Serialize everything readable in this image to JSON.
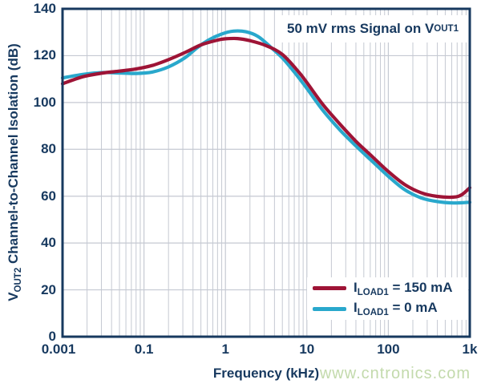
{
  "colors": {
    "axis_and_text": "#17395f",
    "grid": "#c5c9d2",
    "background": "#ffffff",
    "series_red": "#9e1436",
    "series_cyan": "#29a8cc",
    "watermark_green": "#c3daac"
  },
  "annotation": {
    "prefix": "50 mV rms Signal on V",
    "sub": "OUT1"
  },
  "axes": {
    "y_title": {
      "prefix": "V",
      "sub": "OUT2",
      "rest": " Channel-to-Channel Isolation (dB)"
    },
    "x_title": "Frequency (kHz)",
    "y_tick_labels": [
      "0",
      "20",
      "40",
      "60",
      "80",
      "100",
      "120",
      "140"
    ],
    "x_tick_labels": [
      "0.001",
      "0.1",
      "1",
      "10",
      "100",
      "1k"
    ]
  },
  "watermark": {
    "text": "www.cntronics.com"
  },
  "chart_data": {
    "type": "line",
    "title": "",
    "annotation": "50 mV rms Signal on VOUT1",
    "xlabel": "Frequency (kHz)",
    "ylabel": "VOUT2 Channel-to-Channel Isolation (dB)",
    "x_axis": {
      "scale": "log",
      "decades": 5,
      "tick_labels": [
        "0.001",
        "0.1",
        "1",
        "10",
        "100",
        "1k"
      ],
      "grid": true
    },
    "y_axis": {
      "min": 0,
      "max": 140,
      "step": 20,
      "grid": true
    },
    "legend_position": "lower right",
    "series": [
      {
        "name": "ILOAD1 = 150 mA",
        "legend": {
          "prefix": "I",
          "sub": "LOAD1",
          "rest": " = 150 mA"
        },
        "color": "#9e1436",
        "points_decade_dB": [
          [
            0,
            108
          ],
          [
            0.25,
            111
          ],
          [
            0.5,
            112.6
          ],
          [
            0.7,
            113.4
          ],
          [
            0.9,
            114.3
          ],
          [
            1.1,
            115.8
          ],
          [
            1.3,
            118.3
          ],
          [
            1.5,
            121.3
          ],
          [
            1.7,
            124.6
          ],
          [
            1.9,
            126.6
          ],
          [
            2.0,
            127.2
          ],
          [
            2.15,
            127.3
          ],
          [
            2.3,
            126.4
          ],
          [
            2.5,
            124.3
          ],
          [
            2.7,
            120.5
          ],
          [
            2.9,
            113
          ],
          [
            3.0,
            108.5
          ],
          [
            3.2,
            99
          ],
          [
            3.4,
            91
          ],
          [
            3.6,
            83.5
          ],
          [
            3.8,
            77
          ],
          [
            4.0,
            70.5
          ],
          [
            4.2,
            65
          ],
          [
            4.4,
            61.5
          ],
          [
            4.6,
            59.9
          ],
          [
            4.8,
            59.6
          ],
          [
            4.9,
            60.6
          ],
          [
            5.0,
            63.6
          ]
        ]
      },
      {
        "name": "ILOAD1 = 0 mA",
        "legend": {
          "prefix": "I",
          "sub": "LOAD1",
          "rest": " = 0 mA"
        },
        "color": "#29a8cc",
        "points_decade_dB": [
          [
            0,
            110.5
          ],
          [
            0.25,
            112
          ],
          [
            0.5,
            112.8
          ],
          [
            0.7,
            112.6
          ],
          [
            0.9,
            112.4
          ],
          [
            1.1,
            113
          ],
          [
            1.3,
            115.2
          ],
          [
            1.5,
            119
          ],
          [
            1.65,
            123.3
          ],
          [
            1.8,
            126.8
          ],
          [
            1.95,
            129.2
          ],
          [
            2.1,
            130.5
          ],
          [
            2.25,
            130.2
          ],
          [
            2.4,
            128.2
          ],
          [
            2.55,
            123.8
          ],
          [
            2.7,
            119
          ],
          [
            2.85,
            112.8
          ],
          [
            3.0,
            106
          ],
          [
            3.2,
            96.5
          ],
          [
            3.4,
            88.5
          ],
          [
            3.6,
            81.5
          ],
          [
            3.8,
            75
          ],
          [
            4.0,
            68.5
          ],
          [
            4.2,
            62.8
          ],
          [
            4.4,
            59.3
          ],
          [
            4.6,
            57.7
          ],
          [
            4.8,
            57.1
          ],
          [
            5.0,
            57.4
          ]
        ]
      }
    ]
  }
}
